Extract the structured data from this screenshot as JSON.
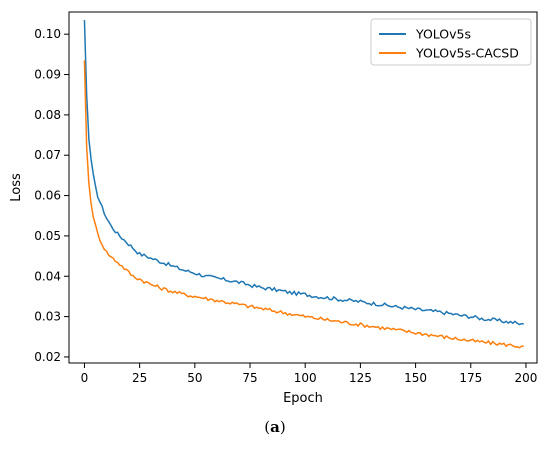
{
  "caption": {
    "open": "(",
    "letter": "a",
    "close": ")"
  },
  "chart_data": {
    "type": "line",
    "title": "",
    "xlabel": "Epoch",
    "ylabel": "Loss",
    "xlim": [
      -7,
      205
    ],
    "ylim": [
      0.0185,
      0.1055
    ],
    "xticks": [
      0,
      25,
      50,
      75,
      100,
      125,
      150,
      175,
      200
    ],
    "yticks": [
      0.02,
      0.03,
      0.04,
      0.05,
      0.06,
      0.07,
      0.08,
      0.09,
      0.1
    ],
    "ytick_labels": [
      "0.02",
      "0.03",
      "0.04",
      "0.05",
      "0.06",
      "0.07",
      "0.08",
      "0.09",
      "0.10"
    ],
    "grid": false,
    "legend_position": "top-right",
    "series": [
      {
        "name": "YOLOv5s",
        "color": "#1f77b4",
        "x": [
          0,
          1,
          2,
          3,
          4,
          5,
          6,
          8,
          10,
          12,
          15,
          18,
          20,
          22,
          25,
          28,
          30,
          35,
          40,
          45,
          50,
          55,
          60,
          65,
          70,
          75,
          80,
          85,
          90,
          95,
          100,
          105,
          110,
          115,
          120,
          125,
          130,
          135,
          140,
          145,
          150,
          155,
          160,
          165,
          170,
          175,
          180,
          185,
          190,
          195,
          198,
          199
        ],
        "y": [
          0.1035,
          0.085,
          0.074,
          0.069,
          0.065,
          0.062,
          0.06,
          0.057,
          0.0545,
          0.0525,
          0.0505,
          0.049,
          0.048,
          0.047,
          0.0455,
          0.045,
          0.0445,
          0.0435,
          0.0425,
          0.0415,
          0.0408,
          0.04,
          0.0395,
          0.039,
          0.0385,
          0.0378,
          0.0372,
          0.0368,
          0.0363,
          0.0358,
          0.0355,
          0.035,
          0.0347,
          0.0343,
          0.034,
          0.0337,
          0.0333,
          0.033,
          0.0325,
          0.0322,
          0.0318,
          0.0315,
          0.0312,
          0.0308,
          0.0303,
          0.03,
          0.0295,
          0.0292,
          0.0288,
          0.0285,
          0.028,
          0.0285
        ]
      },
      {
        "name": "YOLOv5s-CACSD",
        "color": "#ff7f0e",
        "x": [
          0,
          1,
          2,
          3,
          4,
          5,
          6,
          8,
          10,
          12,
          15,
          18,
          20,
          22,
          25,
          28,
          30,
          35,
          40,
          45,
          50,
          55,
          60,
          65,
          70,
          75,
          80,
          85,
          90,
          95,
          100,
          105,
          110,
          115,
          120,
          125,
          130,
          135,
          140,
          145,
          150,
          155,
          160,
          165,
          170,
          175,
          180,
          185,
          190,
          195,
          198,
          199
        ],
        "y": [
          0.0935,
          0.072,
          0.063,
          0.058,
          0.055,
          0.0525,
          0.0505,
          0.048,
          0.046,
          0.0448,
          0.0435,
          0.042,
          0.041,
          0.04,
          0.0393,
          0.0385,
          0.038,
          0.037,
          0.0362,
          0.0355,
          0.035,
          0.0345,
          0.034,
          0.0335,
          0.033,
          0.0325,
          0.032,
          0.0315,
          0.031,
          0.0305,
          0.03,
          0.0296,
          0.0292,
          0.0288,
          0.0284,
          0.028,
          0.0276,
          0.0272,
          0.0268,
          0.0264,
          0.026,
          0.0256,
          0.0252,
          0.0248,
          0.0244,
          0.024,
          0.0237,
          0.0234,
          0.0231,
          0.0228,
          0.0225,
          0.0224
        ]
      }
    ]
  }
}
